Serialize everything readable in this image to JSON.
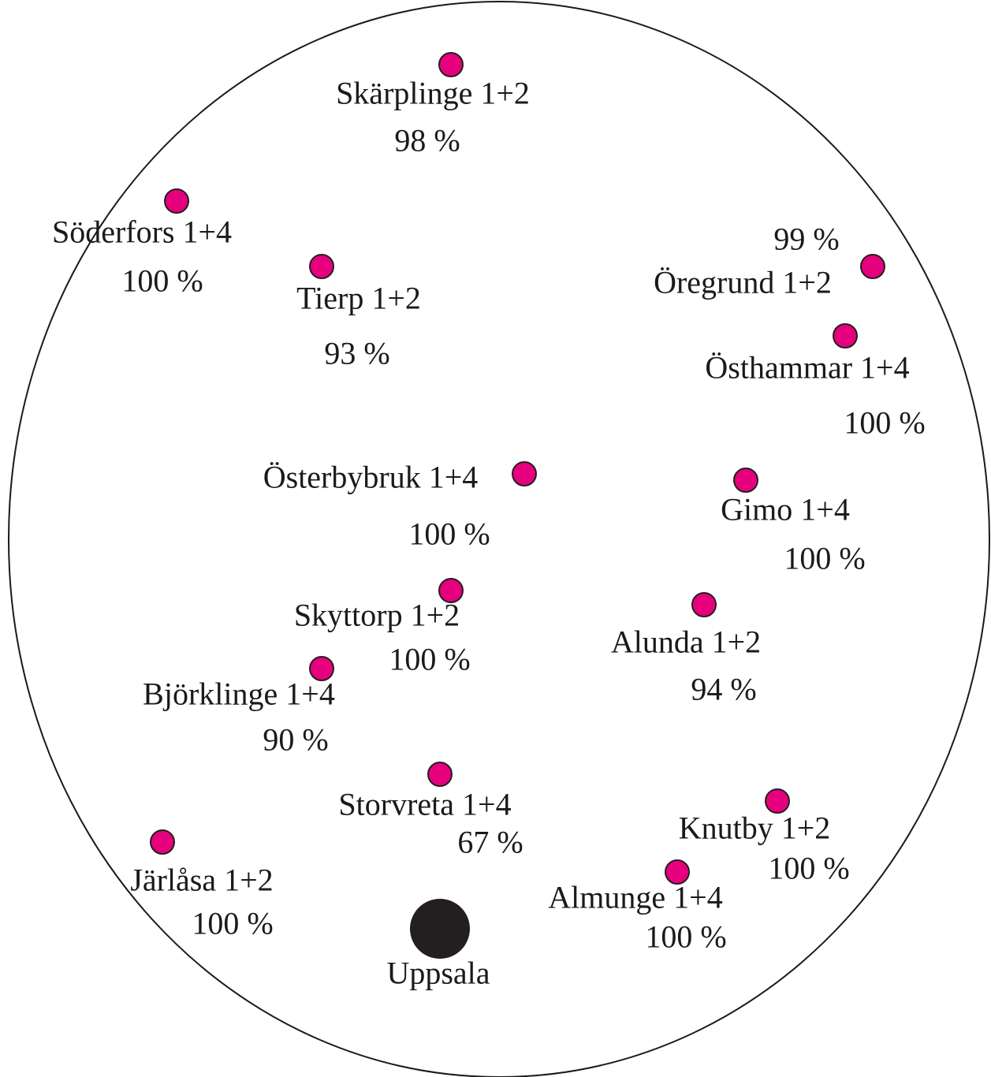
{
  "center": {
    "label": "Uppsala"
  },
  "nodes": [
    {
      "label": "Skärplinge 1+2",
      "percent": "98 %"
    },
    {
      "label": "Söderfors 1+4",
      "percent": "100 %"
    },
    {
      "label": "Tierp 1+2",
      "percent": "93 %"
    },
    {
      "label": "Öregrund 1+2",
      "percent": "99 %"
    },
    {
      "label": "Östhammar 1+4",
      "percent": "100 %"
    },
    {
      "label": "Österbybruk 1+4",
      "percent": "100 %"
    },
    {
      "label": "Gimo 1+4",
      "percent": "100 %"
    },
    {
      "label": "Skyttorp 1+2",
      "percent": "100 %"
    },
    {
      "label": "Alunda 1+2",
      "percent": "94 %"
    },
    {
      "label": "Björklinge 1+4",
      "percent": "90 %"
    },
    {
      "label": "Storvreta 1+4",
      "percent": "67 %"
    },
    {
      "label": "Knutby 1+2",
      "percent": "100 %"
    },
    {
      "label": "Järlåsa 1+2",
      "percent": "100 %"
    },
    {
      "label": "Almunge 1+4",
      "percent": "100 %"
    }
  ]
}
